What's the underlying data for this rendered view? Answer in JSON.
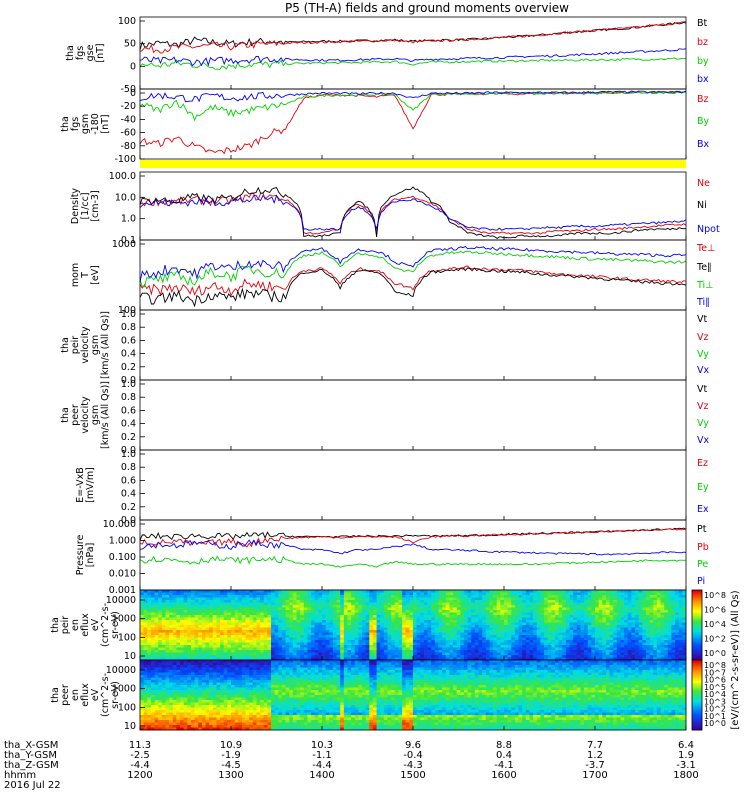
{
  "title": "P5 (TH-A) fields and ground moments overview",
  "colors": {
    "black": "#000000",
    "red": "#e8000b",
    "green": "#00d200",
    "blue": "#0000ff",
    "yellow": "#ffff00"
  },
  "chart_data": [
    {
      "id": "fgs_gse",
      "type": "line",
      "ylabel": [
        "tha",
        "fgs",
        "gse",
        "[nT]"
      ],
      "yticks": [
        "100",
        "50",
        "0",
        "-50"
      ],
      "ylim": [
        -60,
        100
      ],
      "x": [
        1200,
        1220,
        1240,
        1260,
        1280,
        1300,
        1320,
        1340,
        1360,
        1380,
        1400,
        1420,
        1440,
        1460,
        1480,
        1500,
        1520,
        1540,
        1560,
        1580,
        1600,
        1620,
        1640,
        1660,
        1680,
        1700,
        1720,
        1740,
        1760,
        1780,
        1800
      ],
      "series": [
        {
          "name": "Bt",
          "color": "#000000",
          "values": [
            36,
            42,
            38,
            48,
            44,
            40,
            44,
            46,
            44,
            45,
            46,
            46,
            47,
            48,
            49,
            46,
            48,
            49,
            50,
            52,
            55,
            57,
            60,
            64,
            67,
            70,
            73,
            76,
            80,
            84,
            88
          ]
        },
        {
          "name": "bz",
          "color": "#e8000b",
          "values": [
            30,
            28,
            32,
            34,
            36,
            34,
            38,
            40,
            42,
            43,
            44,
            45,
            46,
            47,
            48,
            44,
            47,
            48,
            50,
            52,
            55,
            57,
            60,
            64,
            67,
            70,
            73,
            76,
            80,
            84,
            88
          ]
        },
        {
          "name": "by",
          "color": "#00d200",
          "values": [
            -5,
            -8,
            -3,
            -6,
            -10,
            -8,
            -5,
            -6,
            -4,
            -3,
            -2,
            -2,
            -1,
            0,
            1,
            -5,
            0,
            0,
            1,
            2,
            2,
            3,
            3,
            4,
            4,
            5,
            5,
            6,
            6,
            7,
            8
          ]
        },
        {
          "name": "bx",
          "color": "#0000ff",
          "values": [
            5,
            2,
            4,
            0,
            2,
            4,
            6,
            8,
            6,
            5,
            4,
            4,
            5,
            6,
            7,
            3,
            6,
            7,
            8,
            9,
            10,
            12,
            13,
            14,
            16,
            18,
            20,
            22,
            24,
            26,
            28
          ]
        }
      ]
    },
    {
      "id": "fgs_gsm_b",
      "type": "line",
      "ylabel": [
        "tha",
        "fgs",
        "gsm",
        "-180",
        "[nT]"
      ],
      "yticks": [
        "0",
        "-20",
        "-40",
        "-60",
        "-80",
        "-100"
      ],
      "ylim": [
        -110,
        5
      ],
      "x": [
        1200,
        1220,
        1240,
        1260,
        1280,
        1300,
        1320,
        1340,
        1360,
        1380,
        1400,
        1420,
        1440,
        1460,
        1480,
        1500,
        1520,
        1540,
        1560,
        1580,
        1600,
        1620,
        1640,
        1660,
        1680,
        1700,
        1720,
        1740,
        1760,
        1780,
        1800
      ],
      "series": [
        {
          "name": "Bz",
          "color": "#e8000b",
          "values": [
            -80,
            -85,
            -75,
            -90,
            -100,
            -95,
            -88,
            -70,
            -60,
            -10,
            -5,
            -5,
            -6,
            -8,
            -5,
            -60,
            -4,
            -4,
            -3,
            -3,
            -3,
            -3,
            -2,
            -2,
            -2,
            -2,
            -1,
            -1,
            -1,
            -1,
            0
          ]
        },
        {
          "name": "By",
          "color": "#00d200",
          "values": [
            -20,
            -30,
            -15,
            -40,
            -25,
            -35,
            -30,
            -25,
            -20,
            -8,
            -6,
            -5,
            -5,
            -4,
            -4,
            -30,
            -3,
            -3,
            -3,
            -3,
            -2,
            -2,
            -2,
            -2,
            -2,
            -1,
            -1,
            -1,
            -1,
            -1,
            -1
          ]
        },
        {
          "name": "Bx",
          "color": "#0000ff",
          "values": [
            -10,
            -5,
            -8,
            -12,
            -6,
            -10,
            -8,
            -6,
            -5,
            -3,
            -2,
            -2,
            -3,
            -2,
            -2,
            -10,
            -2,
            -2,
            -2,
            -1,
            -1,
            -1,
            -1,
            -1,
            -1,
            0,
            0,
            0,
            0,
            0,
            0
          ]
        }
      ]
    },
    {
      "id": "density",
      "type": "line",
      "ylabel": [
        "Density",
        "[1/cc]",
        "[cm-3]"
      ],
      "yticks": [
        "100.0",
        "10.0",
        "1.0",
        "0.1"
      ],
      "log": true,
      "ylim": [
        0.1,
        100
      ],
      "x": [
        1200,
        1220,
        1240,
        1260,
        1280,
        1300,
        1320,
        1340,
        1360,
        1380,
        1400,
        1420,
        1440,
        1460,
        1480,
        1500,
        1520,
        1540,
        1560,
        1580,
        1600,
        1620,
        1640,
        1660,
        1680,
        1700,
        1720,
        1740,
        1760,
        1780,
        1800
      ],
      "series": [
        {
          "name": "Ne",
          "color": "#e8000b",
          "values": [
            4.5,
            5,
            4.8,
            6,
            5,
            5.5,
            8,
            9,
            6,
            0.2,
            0.2,
            0.3,
            4,
            0.2,
            6,
            8,
            4,
            0.8,
            0.3,
            0.2,
            0.2,
            0.2,
            0.2,
            0.25,
            0.25,
            0.3,
            0.3,
            0.35,
            0.4,
            0.45,
            0.5
          ]
        },
        {
          "name": "Ni",
          "color": "#000000",
          "values": [
            5,
            6,
            5,
            8,
            6,
            7,
            15,
            18,
            10,
            0.15,
            0.15,
            0.2,
            5,
            0.15,
            10,
            20,
            5,
            0.6,
            0.2,
            0.15,
            0.12,
            0.15,
            0.15,
            0.15,
            0.2,
            0.2,
            0.2,
            0.25,
            0.3,
            0.3,
            0.35
          ]
        },
        {
          "name": "Npot",
          "color": "#0000ff",
          "values": [
            4,
            4.5,
            4.2,
            5,
            4.5,
            5,
            6,
            7,
            5,
            0.3,
            0.3,
            0.3,
            3,
            0.3,
            5,
            6,
            3,
            0.8,
            0.35,
            0.3,
            0.3,
            0.3,
            0.35,
            0.35,
            0.4,
            0.4,
            0.45,
            0.5,
            0.55,
            0.6,
            0.7
          ]
        }
      ]
    },
    {
      "id": "temp",
      "type": "line",
      "ylabel": [
        "mom",
        "T",
        "[eV]"
      ],
      "yticks": [
        "1000",
        "100"
      ],
      "log": true,
      "ylim": [
        40,
        8000
      ],
      "x": [
        1200,
        1220,
        1240,
        1260,
        1280,
        1300,
        1320,
        1340,
        1360,
        1380,
        1400,
        1420,
        1440,
        1460,
        1480,
        1500,
        1520,
        1540,
        1560,
        1580,
        1600,
        1620,
        1640,
        1660,
        1680,
        1700,
        1720,
        1740,
        1760,
        1780,
        1800
      ],
      "series": [
        {
          "name": "Te⊥",
          "color": "#e8000b",
          "values": [
            200,
            180,
            220,
            150,
            250,
            180,
            300,
            250,
            200,
            800,
            900,
            300,
            900,
            800,
            300,
            200,
            800,
            900,
            1000,
            900,
            850,
            800,
            700,
            600,
            550,
            500,
            450,
            400,
            380,
            350,
            330
          ]
        },
        {
          "name": "Te∥",
          "color": "#000000",
          "values": [
            100,
            90,
            120,
            80,
            130,
            100,
            150,
            120,
            100,
            700,
            800,
            200,
            800,
            700,
            150,
            120,
            700,
            800,
            900,
            800,
            750,
            700,
            600,
            550,
            500,
            450,
            400,
            350,
            330,
            300,
            290
          ]
        },
        {
          "name": "Ti⊥",
          "color": "#00d200",
          "values": [
            300,
            400,
            500,
            350,
            700,
            500,
            900,
            700,
            600,
            2500,
            3000,
            1000,
            2800,
            2500,
            900,
            700,
            2500,
            3000,
            3200,
            3000,
            2800,
            2600,
            2400,
            2200,
            2000,
            1900,
            1800,
            1700,
            1600,
            1500,
            1500
          ]
        },
        {
          "name": "Ti∥",
          "color": "#0000ff",
          "values": [
            500,
            700,
            1000,
            600,
            1200,
            900,
            1500,
            1200,
            1000,
            3500,
            4000,
            1500,
            3800,
            3500,
            1500,
            1000,
            3500,
            4000,
            4500,
            4200,
            4000,
            3800,
            3600,
            3400,
            3200,
            3000,
            2800,
            2700,
            2600,
            2500,
            2500
          ]
        }
      ]
    },
    {
      "id": "peir_vel",
      "type": "line",
      "ylabel": [
        "tha",
        "peir",
        "velocity",
        "gsm",
        "[km/s (All Qs)]"
      ],
      "yticks": [
        "1.0",
        "0.8",
        "0.6",
        "0.4",
        "0.2",
        "0.0"
      ],
      "ylim": [
        0,
        1
      ],
      "series": [],
      "legend": [
        "Vt",
        "Vz",
        "Vy",
        "Vx"
      ]
    },
    {
      "id": "peer_vel",
      "type": "line",
      "ylabel": [
        "tha",
        "peer",
        "velocity",
        "gsm",
        "[km/s (All Qs)]"
      ],
      "yticks": [
        "1.0",
        "0.8",
        "0.6",
        "0.4",
        "0.2",
        "0.0"
      ],
      "ylim": [
        0,
        1
      ],
      "series": [],
      "legend": [
        "Vt",
        "Vz",
        "Vy",
        "Vx"
      ]
    },
    {
      "id": "efield",
      "type": "line",
      "ylabel": [
        "E=-VxB",
        "[mV/m]"
      ],
      "yticks": [
        "1.0",
        "0.8",
        "0.6",
        "0.4",
        "0.2",
        "0.0"
      ],
      "ylim": [
        0,
        1
      ],
      "series": [],
      "legend": [
        "Ez",
        "Ey",
        "Ex"
      ]
    },
    {
      "id": "pressure",
      "type": "line",
      "ylabel": [
        "Pressure",
        "[nPa]"
      ],
      "yticks": [
        "10.000",
        "1.000",
        "0.100",
        "0.010",
        "0.001"
      ],
      "log": true,
      "ylim": [
        0.001,
        10
      ],
      "x": [
        1200,
        1220,
        1240,
        1260,
        1280,
        1300,
        1320,
        1340,
        1360,
        1380,
        1400,
        1420,
        1440,
        1460,
        1480,
        1500,
        1520,
        1540,
        1560,
        1580,
        1600,
        1620,
        1640,
        1660,
        1680,
        1700,
        1720,
        1740,
        1760,
        1780,
        1800
      ],
      "series": [
        {
          "name": "Pt",
          "color": "#000000",
          "values": [
            1,
            1.2,
            1.1,
            1.3,
            1.2,
            1.1,
            1.3,
            1.4,
            1.2,
            1.1,
            1.15,
            1.1,
            1.2,
            1.2,
            1.2,
            1.3,
            1.2,
            1.25,
            1.3,
            1.4,
            1.5,
            1.6,
            1.7,
            1.8,
            2,
            2.1,
            2.3,
            2.5,
            2.7,
            3,
            3.2
          ]
        },
        {
          "name": "Pb",
          "color": "#e8000b",
          "values": [
            0.6,
            0.5,
            0.6,
            0.4,
            0.5,
            0.6,
            0.4,
            0.8,
            0.9,
            1,
            1.1,
            1,
            1.1,
            1.1,
            1.1,
            0.5,
            1.1,
            1.2,
            1.2,
            1.35,
            1.45,
            1.55,
            1.65,
            1.75,
            1.9,
            2.05,
            2.2,
            2.4,
            2.6,
            2.9,
            3.1
          ]
        },
        {
          "name": "Pe",
          "color": "#00d200",
          "values": [
            0.05,
            0.06,
            0.05,
            0.04,
            0.06,
            0.05,
            0.05,
            0.06,
            0.05,
            0.03,
            0.03,
            0.02,
            0.03,
            0.02,
            0.04,
            0.03,
            0.03,
            0.03,
            0.03,
            0.03,
            0.03,
            0.03,
            0.03,
            0.035,
            0.035,
            0.04,
            0.04,
            0.045,
            0.05,
            0.05,
            0.05
          ]
        },
        {
          "name": "Pi",
          "color": "#0000ff",
          "values": [
            0.3,
            0.4,
            0.35,
            0.5,
            0.4,
            0.3,
            0.5,
            0.4,
            0.35,
            0.2,
            0.2,
            0.12,
            0.2,
            0.2,
            0.3,
            0.4,
            0.2,
            0.2,
            0.18,
            0.16,
            0.15,
            0.14,
            0.13,
            0.12,
            0.12,
            0.11,
            0.11,
            0.12,
            0.13,
            0.14,
            0.15
          ]
        }
      ]
    },
    {
      "id": "peir_eflux",
      "type": "heatmap",
      "ylabel": [
        "tha",
        "peir",
        "en",
        "eflux",
        "eV",
        "(cm^2-s-",
        "sr-eV)"
      ],
      "yticks": [
        "10000",
        "1000",
        "100",
        "10"
      ],
      "cbticks": [
        "10^8",
        "10^6",
        "10^4",
        "10^2",
        "10^0"
      ],
      "cblabel": "[eV/(cm^2-s-sr-eV)] (All Qs)"
    },
    {
      "id": "peer_eflux",
      "type": "heatmap",
      "ylabel": [
        "tha",
        "peer",
        "en",
        "eflux",
        "eV",
        "(cm^2-s-",
        "sr-eV)"
      ],
      "yticks": [
        "10000",
        "1000",
        "100",
        "10"
      ],
      "cbticks": [
        "10^8",
        "10^7",
        "10^6",
        "10^5",
        "10^4",
        "10^3",
        "10^2",
        "10^1",
        "10^0"
      ],
      "cblabel": "[eV/(cm^2-s-sr-eV)] (All Qs)"
    }
  ],
  "xaxis": {
    "rows": [
      {
        "label": "tha_X-GSM",
        "values": [
          "11.3",
          "10.9",
          "10.3",
          "9.6",
          "8.8",
          "7.7",
          "6.4"
        ]
      },
      {
        "label": "tha_Y-GSM",
        "values": [
          "-2.5",
          "-1.9",
          "-1.1",
          "-0.4",
          "0.4",
          "1.2",
          "1.9"
        ]
      },
      {
        "label": "tha_Z-GSM",
        "values": [
          "-4.4",
          "-4.5",
          "-4.4",
          "-4.3",
          "-4.1",
          "-3.7",
          "-3.1"
        ]
      },
      {
        "label": "hhmm",
        "values": [
          "1200",
          "1300",
          "1400",
          "1500",
          "1600",
          "1700",
          "1800"
        ]
      }
    ],
    "date": "2016 Jul 22"
  }
}
